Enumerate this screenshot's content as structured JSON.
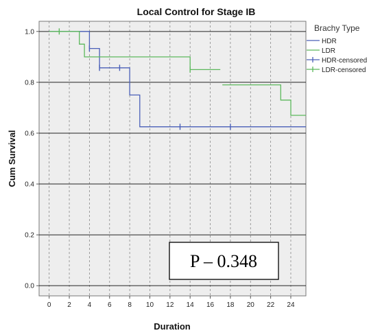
{
  "chart_data": {
    "type": "line",
    "title": "Local Control for Stage IB",
    "xlabel": "Duration",
    "ylabel": "Cum Survival",
    "xlim": [
      -1,
      25.5
    ],
    "ylim": [
      -0.04,
      1.04
    ],
    "x_ticks": [
      0,
      2,
      4,
      6,
      8,
      10,
      12,
      14,
      16,
      18,
      20,
      22,
      24
    ],
    "x_tick_labels": [
      "0",
      "2",
      "4",
      "6",
      "8",
      "10",
      "12",
      "14",
      "16",
      "18",
      "20",
      "22",
      "24"
    ],
    "y_ticks": [
      0.0,
      0.2,
      0.4,
      0.6,
      0.8,
      1.0
    ],
    "y_tick_labels": [
      "0.0",
      "0.2",
      "0.4",
      "0.6",
      "0.8",
      "1.0"
    ],
    "grid": true,
    "legend": {
      "title": "Brachy Type",
      "placement": "top-right",
      "entries": [
        "HDR",
        "LDR",
        "HDR-censored",
        "LDR-censored"
      ]
    },
    "series": [
      {
        "name": "HDR",
        "color": "#4a5fb8",
        "x": [
          0,
          4,
          4,
          5,
          5,
          8,
          8,
          9,
          9,
          25.5
        ],
        "y": [
          1.0,
          1.0,
          0.933,
          0.933,
          0.857,
          0.857,
          0.75,
          0.75,
          0.625,
          0.625
        ]
      },
      {
        "name": "LDR",
        "color": "#5cb85c",
        "segments": [
          {
            "x": [
              0,
              3,
              3,
              3.5,
              3.5,
              14,
              14,
              17
            ],
            "y": [
              1.0,
              1.0,
              0.95,
              0.95,
              0.9,
              0.9,
              0.85,
              0.85
            ]
          },
          {
            "x": [
              17.2,
              23,
              23,
              24,
              24,
              25.5
            ],
            "y": [
              0.79,
              0.79,
              0.73,
              0.73,
              0.67,
              0.67
            ]
          }
        ]
      },
      {
        "name": "HDR-censored",
        "color": "#4a5fb8",
        "x": [
          4,
          5,
          7,
          13,
          18
        ],
        "y": [
          0.933,
          0.857,
          0.857,
          0.625,
          0.625
        ]
      },
      {
        "name": "LDR-censored",
        "color": "#5cb85c",
        "x": [
          1,
          14
        ],
        "y": [
          1.0,
          0.85
        ]
      }
    ],
    "annotation": "P – 0.348"
  }
}
